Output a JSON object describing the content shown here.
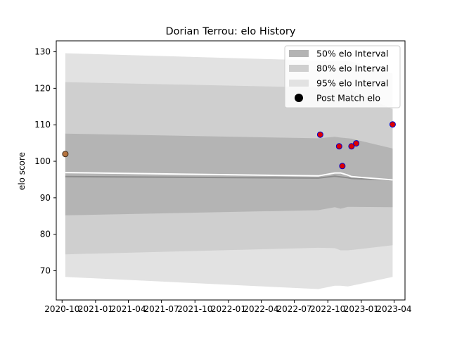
{
  "chart_data": {
    "type": "area",
    "title": "Dorian Terrou: elo History",
    "xlabel": "",
    "ylabel": "elo score",
    "xlim": [
      "2020-09-15",
      "2023-05-01"
    ],
    "ylim": [
      62,
      133
    ],
    "grid": false,
    "legend_position": "top-right",
    "x_ticks": [
      "2020-10-01",
      "2021-01-01",
      "2021-04-01",
      "2021-07-01",
      "2021-10-01",
      "2022-01-01",
      "2022-04-01",
      "2022-07-01",
      "2022-10-01",
      "2023-01-01",
      "2023-04-01"
    ],
    "x_tick_labels": [
      "2020-10",
      "2021-01",
      "2021-04",
      "2021-07",
      "2021-10",
      "2022-01",
      "2022-04",
      "2022-07",
      "2022-10",
      "2023-01",
      "2023-04"
    ],
    "y_ticks": [
      70,
      80,
      90,
      100,
      110,
      120,
      130
    ],
    "y_tick_labels": [
      "70",
      "80",
      "90",
      "100",
      "110",
      "120",
      "130"
    ],
    "band_dates": [
      "2020-10-10",
      "2022-09-05",
      "2022-10-20",
      "2022-11-05",
      "2022-11-25",
      "2022-12-05",
      "2023-03-28"
    ],
    "intervals": [
      {
        "name": "95% elo Interval",
        "color": "#e2e2e2",
        "lower": [
          68.3,
          65.0,
          65.9,
          65.9,
          65.7,
          65.9,
          68.3
        ],
        "upper": [
          129.6,
          127.6,
          127.5,
          127.5,
          127.4,
          127.3,
          124.0
        ]
      },
      {
        "name": "80% elo Interval",
        "color": "#cfcfcf",
        "lower": [
          74.5,
          76.3,
          76.2,
          75.6,
          75.6,
          75.7,
          77.0
        ],
        "upper": [
          121.7,
          120.2,
          120.0,
          119.8,
          119.6,
          119.5,
          114.2
        ]
      },
      {
        "name": "50% elo Interval",
        "color": "#b4b4b4",
        "lower": [
          85.2,
          86.6,
          87.4,
          87.0,
          87.5,
          87.5,
          87.4
        ],
        "upper": [
          107.6,
          106.3,
          106.7,
          106.5,
          106.3,
          106.2,
          103.5
        ]
      }
    ],
    "mean_line": {
      "color": "#8c8c8c",
      "values": [
        95.8,
        95.4,
        95.9,
        95.7,
        95.5,
        95.3,
        94.9
      ]
    },
    "median_line": {
      "color": "#ffffff",
      "values": [
        96.9,
        96.0,
        96.8,
        96.8,
        96.2,
        95.8,
        94.9
      ]
    },
    "points": [
      {
        "date": "2020-10-10",
        "elo": 102.0,
        "fill": "#b5733e",
        "edge": "#3c2a1a"
      },
      {
        "date": "2022-09-10",
        "elo": 107.3,
        "fill": "#dd0000",
        "edge": "#0000cc"
      },
      {
        "date": "2022-11-01",
        "elo": 104.1,
        "fill": "#dd0000",
        "edge": "#0000cc"
      },
      {
        "date": "2022-11-10",
        "elo": 98.7,
        "fill": "#dd0000",
        "edge": "#0000cc"
      },
      {
        "date": "2022-12-05",
        "elo": 104.1,
        "fill": "#dd0000",
        "edge": "#0000cc"
      },
      {
        "date": "2022-12-18",
        "elo": 104.9,
        "fill": "#dd0000",
        "edge": "#0000cc"
      },
      {
        "date": "2023-03-28",
        "elo": 110.1,
        "fill": "#dd0000",
        "edge": "#0000cc"
      }
    ],
    "legend": [
      {
        "label": "50% elo Interval",
        "kind": "patch",
        "color": "#b4b4b4"
      },
      {
        "label": "80% elo Interval",
        "kind": "patch",
        "color": "#cfcfcf"
      },
      {
        "label": "95% elo Interval",
        "kind": "patch",
        "color": "#e2e2e2"
      },
      {
        "label": "Post Match elo",
        "kind": "marker",
        "color": "#000000"
      }
    ]
  }
}
